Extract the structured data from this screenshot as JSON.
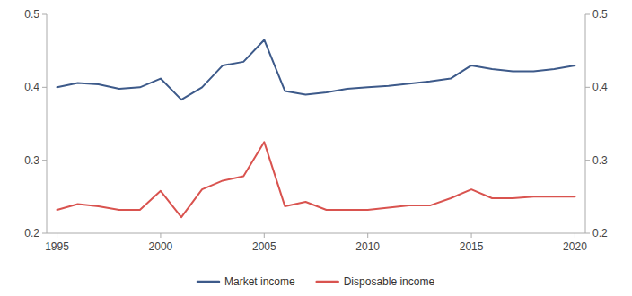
{
  "chart_data": {
    "type": "line",
    "x": [
      1995,
      1996,
      1997,
      1998,
      1999,
      2000,
      2001,
      2002,
      2003,
      2004,
      2005,
      2006,
      2007,
      2008,
      2009,
      2010,
      2011,
      2012,
      2013,
      2014,
      2015,
      2016,
      2017,
      2018,
      2019,
      2020
    ],
    "series": [
      {
        "name": "Market income",
        "color": "#3d5a8a",
        "values": [
          0.4,
          0.406,
          0.404,
          0.398,
          0.4,
          0.412,
          0.383,
          0.4,
          0.43,
          0.435,
          0.465,
          0.395,
          0.39,
          0.393,
          0.398,
          0.4,
          0.402,
          0.405,
          0.408,
          0.412,
          0.43,
          0.425,
          0.422,
          0.422,
          0.425,
          0.43
        ]
      },
      {
        "name": "Disposable income",
        "color": "#d9534f",
        "values": [
          0.232,
          0.24,
          0.237,
          0.232,
          0.232,
          0.258,
          0.222,
          0.26,
          0.272,
          0.278,
          0.325,
          0.237,
          0.243,
          0.232,
          0.232,
          0.232,
          0.235,
          0.238,
          0.238,
          0.248,
          0.26,
          0.248,
          0.248,
          0.25,
          0.25,
          0.25
        ]
      }
    ],
    "xlim": [
      1994.5,
      2020.5
    ],
    "xticks": [
      1995,
      2000,
      2005,
      2010,
      2015,
      2020
    ],
    "ylim": [
      0.2,
      0.5
    ],
    "yticks": [
      0.2,
      0.3,
      0.4,
      0.5
    ],
    "y2lim": [
      0.2,
      0.5
    ],
    "y2ticks": [
      0.2,
      0.3,
      0.4,
      0.5
    ],
    "grid": false,
    "legend": "bottom"
  }
}
